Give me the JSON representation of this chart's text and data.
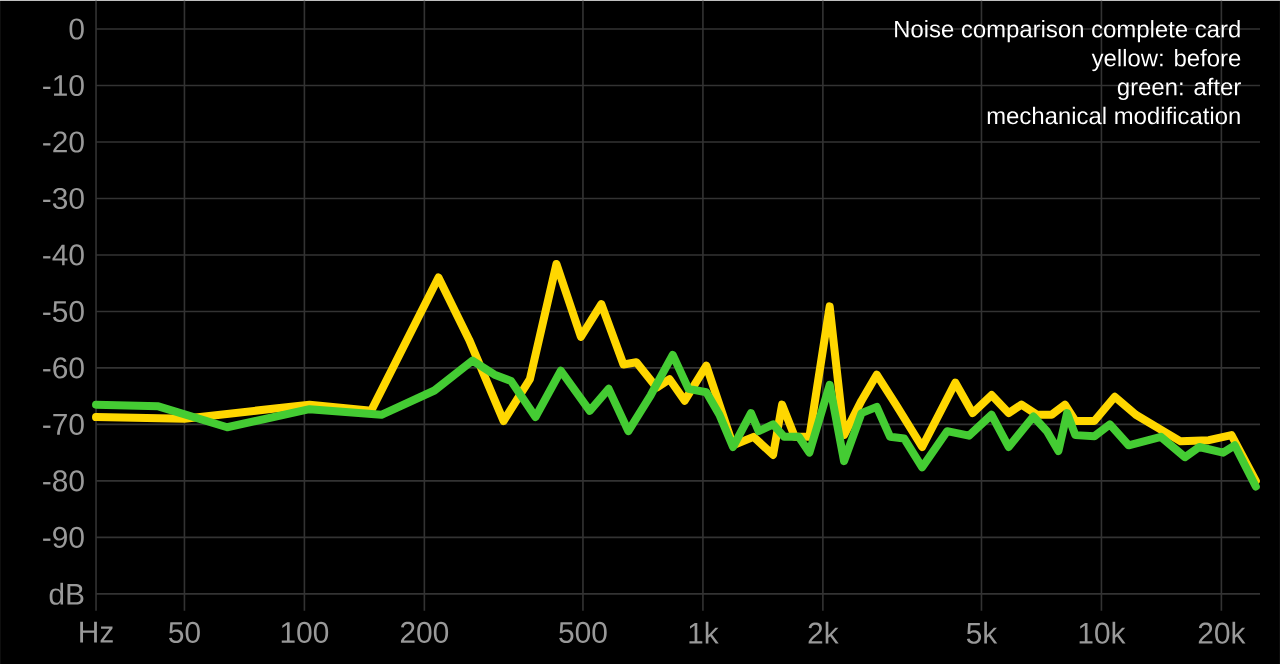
{
  "chart_data": {
    "type": "line",
    "annotations": [
      "Noise comparison complete card",
      "yellow: before",
      "green: after",
      "mechanical modification"
    ],
    "log": "x",
    "grid": true,
    "line_style": "solid",
    "xlim": [
      30,
      25000
    ],
    "ylim": [
      -103,
      5
    ],
    "xticks": [
      {
        "value": 30,
        "label": "Hz"
      },
      50,
      100,
      200,
      500,
      {
        "value": 1000,
        "label": "1k"
      },
      {
        "value": 2000,
        "label": "2k"
      },
      {
        "value": 5000,
        "label": "5k"
      },
      {
        "value": 10000,
        "label": "10k"
      },
      {
        "value": 20000,
        "label": "20k"
      }
    ],
    "yticks": [
      0,
      -10,
      -20,
      -30,
      -40,
      -50,
      -60,
      -70,
      -80,
      -90,
      {
        "value": -100,
        "label": "dB"
      }
    ],
    "series": [
      {
        "color": "#ffd700",
        "x": [
          30,
          50,
          103,
          147,
          217,
          259,
          316,
          368,
          429,
          494,
          556,
          632,
          681,
          766,
          825,
          900,
          1020,
          1190,
          1340,
          1500,
          1580,
          1700,
          1850,
          2080,
          2260,
          2500,
          2730,
          3050,
          3550,
          4300,
          4750,
          5300,
          5850,
          6300,
          6900,
          7500,
          8100,
          8600,
          9600,
          10800,
          12200,
          14300,
          15800,
          18600,
          21200,
          24400
        ],
        "values": [
          -68.7,
          -69,
          -66.5,
          -67.6,
          -44,
          -55,
          -69.4,
          -62,
          -41.6,
          -54.5,
          -48.7,
          -59.4,
          -59,
          -63.5,
          -62,
          -65.8,
          -59.6,
          -73.7,
          -72.2,
          -75.4,
          -66.5,
          -72.2,
          -72.2,
          -49.1,
          -71.9,
          -65.8,
          -61.2,
          -66.5,
          -74,
          -62.6,
          -68,
          -64.8,
          -68,
          -66.5,
          -68.3,
          -68.3,
          -66.5,
          -69.4,
          -69.4,
          -65.1,
          -68.3,
          -71.2,
          -73,
          -72.8,
          -71.9,
          -80
        ]
      },
      {
        "color": "#44cc33",
        "x": [
          30,
          43,
          64,
          103,
          156,
          212,
          264,
          300,
          330,
          380,
          440,
          520,
          580,
          650,
          740,
          840,
          920,
          1020,
          1100,
          1190,
          1320,
          1380,
          1500,
          1600,
          1740,
          1850,
          2080,
          2260,
          2500,
          2730,
          2950,
          3200,
          3550,
          4100,
          4650,
          5300,
          5850,
          6750,
          7300,
          7800,
          8200,
          8600,
          9600,
          10500,
          11700,
          14100,
          16200,
          17600,
          20200,
          21600,
          24400
        ],
        "values": [
          -66.5,
          -66.8,
          -70.5,
          -67.3,
          -68.3,
          -64,
          -58.7,
          -61.2,
          -62.3,
          -68.7,
          -60.5,
          -67.6,
          -63.7,
          -71.2,
          -64.8,
          -57.7,
          -63.7,
          -64.3,
          -68.3,
          -74,
          -68,
          -71.2,
          -70,
          -72.2,
          -72.2,
          -75,
          -63,
          -76.5,
          -68,
          -66.9,
          -72.2,
          -72.5,
          -77.6,
          -71.2,
          -72,
          -68.3,
          -74,
          -68.6,
          -71.2,
          -74.7,
          -68,
          -71.9,
          -72.1,
          -70,
          -73.7,
          -72.2,
          -75.8,
          -74,
          -75,
          -73.7,
          -81
        ]
      }
    ]
  }
}
